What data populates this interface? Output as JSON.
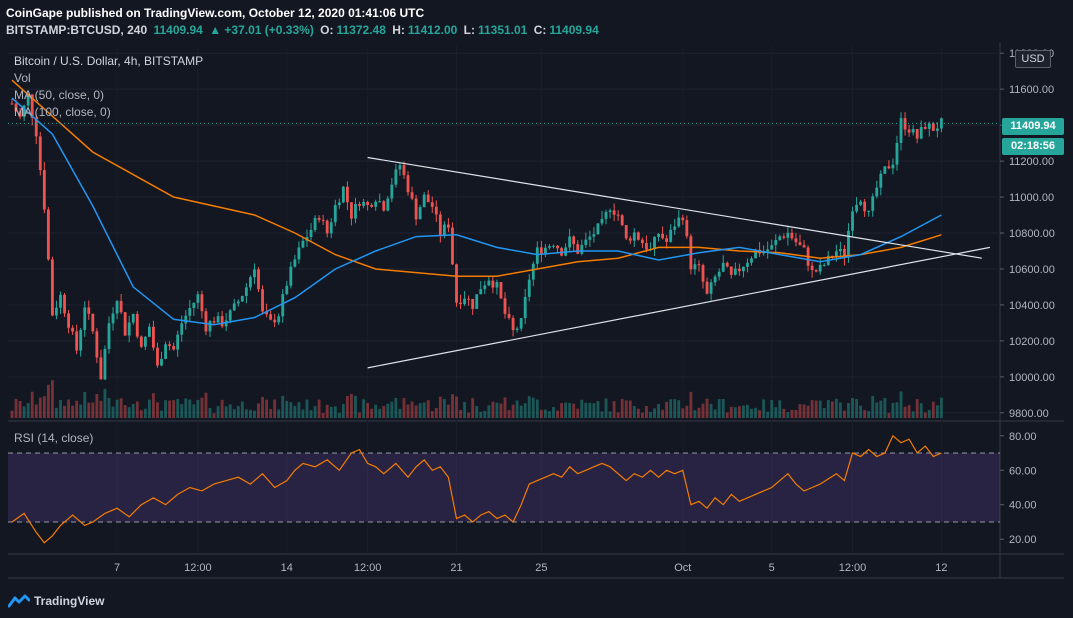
{
  "header": {
    "publisher": "CoinGape published on TradingView.com, October 12, 2020 01:41:06 UTC",
    "symbol": "BITSTAMP:BTCUSD, 240",
    "last": "11409.94",
    "change": "▲ +37.01 (+0.33%)",
    "o_label": "O:",
    "o": "11372.48",
    "h_label": "H:",
    "h": "11412.00",
    "l_label": "L:",
    "l": "11351.01",
    "c_label": "C:",
    "c": "11409.94"
  },
  "legend": {
    "title": "Bitcoin / U.S. Dollar, 4h, BITSTAMP",
    "vol": "Vol",
    "ma50": "MA (50, close, 0)",
    "ma100": "MA (100, close, 0)",
    "rsi": "RSI (14, close)"
  },
  "price_axis": {
    "currency": "USD",
    "last_price_label": "11409.94",
    "countdown_label": "02:18:56"
  },
  "footer": {
    "brand": "TradingView"
  },
  "colors": {
    "background": "#131722",
    "up": "#26a69a",
    "down": "#ef5350",
    "ma50": "#2196f3",
    "ma100": "#f57c00",
    "rsi_line": "#f57c00",
    "rsi_band": "#7e57c2"
  },
  "chart_data": [
    {
      "type": "candlestick",
      "title": "Bitcoin / U.S. Dollar, 4h, BITSTAMP",
      "price_ticks": [
        9800,
        10000,
        10200,
        10400,
        10600,
        10800,
        11000,
        11200,
        11400,
        11600,
        11800
      ],
      "price_tick_labels": [
        "9800.00",
        "10000.00",
        "10200.00",
        "10400.00",
        "10600.00",
        "10800.00",
        "11000.00",
        "11200.00",
        "11400.00",
        "11600.00",
        "11800.00"
      ],
      "ylim": [
        9760,
        11840
      ],
      "x_tick_labels": [
        "7",
        "12:00",
        "14",
        "12:00",
        "21",
        "25",
        "Oct",
        "5",
        "12:00",
        "12"
      ],
      "x_tick_index": [
        26,
        46,
        68,
        88,
        110,
        131,
        166,
        188,
        208,
        230
      ],
      "candle_count": 232,
      "close_path": [
        [
          0,
          11520
        ],
        [
          2,
          11440
        ],
        [
          4,
          11560
        ],
        [
          6,
          11360
        ],
        [
          8,
          10950
        ],
        [
          10,
          10350
        ],
        [
          12,
          10450
        ],
        [
          14,
          10300
        ],
        [
          16,
          10150
        ],
        [
          18,
          10400
        ],
        [
          20,
          10250
        ],
        [
          22,
          10000
        ],
        [
          24,
          10300
        ],
        [
          26,
          10450
        ],
        [
          28,
          10250
        ],
        [
          30,
          10350
        ],
        [
          32,
          10150
        ],
        [
          34,
          10280
        ],
        [
          36,
          10050
        ],
        [
          38,
          10200
        ],
        [
          40,
          10150
        ],
        [
          42,
          10300
        ],
        [
          44,
          10380
        ],
        [
          46,
          10450
        ],
        [
          48,
          10280
        ],
        [
          50,
          10320
        ],
        [
          52,
          10300
        ],
        [
          54,
          10350
        ],
        [
          56,
          10420
        ],
        [
          58,
          10500
        ],
        [
          60,
          10620
        ],
        [
          62,
          10350
        ],
        [
          64,
          10300
        ],
        [
          66,
          10350
        ],
        [
          68,
          10520
        ],
        [
          70,
          10650
        ],
        [
          72,
          10750
        ],
        [
          74,
          10820
        ],
        [
          76,
          10900
        ],
        [
          78,
          10800
        ],
        [
          80,
          10950
        ],
        [
          82,
          11050
        ],
        [
          84,
          10900
        ],
        [
          86,
          10980
        ],
        [
          88,
          10950
        ],
        [
          90,
          11000
        ],
        [
          92,
          10950
        ],
        [
          94,
          11080
        ],
        [
          96,
          11180
        ],
        [
          98,
          11050
        ],
        [
          100,
          10900
        ],
        [
          102,
          11000
        ],
        [
          104,
          10950
        ],
        [
          106,
          10800
        ],
        [
          108,
          10850
        ],
        [
          110,
          10420
        ],
        [
          112,
          10450
        ],
        [
          114,
          10400
        ],
        [
          116,
          10500
        ],
        [
          118,
          10550
        ],
        [
          120,
          10500
        ],
        [
          122,
          10350
        ],
        [
          124,
          10250
        ],
        [
          126,
          10300
        ],
        [
          128,
          10550
        ],
        [
          130,
          10700
        ],
        [
          132,
          10720
        ],
        [
          134,
          10750
        ],
        [
          136,
          10700
        ],
        [
          138,
          10760
        ],
        [
          140,
          10700
        ],
        [
          142,
          10750
        ],
        [
          144,
          10800
        ],
        [
          146,
          10850
        ],
        [
          148,
          10950
        ],
        [
          150,
          10900
        ],
        [
          152,
          10760
        ],
        [
          154,
          10800
        ],
        [
          156,
          10750
        ],
        [
          158,
          10700
        ],
        [
          160,
          10800
        ],
        [
          162,
          10750
        ],
        [
          164,
          10850
        ],
        [
          166,
          10900
        ],
        [
          168,
          10620
        ],
        [
          170,
          10600
        ],
        [
          172,
          10450
        ],
        [
          174,
          10550
        ],
        [
          176,
          10620
        ],
        [
          178,
          10550
        ],
        [
          180,
          10600
        ],
        [
          182,
          10650
        ],
        [
          184,
          10700
        ],
        [
          186,
          10700
        ],
        [
          188,
          10720
        ],
        [
          190,
          10780
        ],
        [
          192,
          10800
        ],
        [
          194,
          10750
        ],
        [
          196,
          10700
        ],
        [
          198,
          10580
        ],
        [
          200,
          10600
        ],
        [
          202,
          10650
        ],
        [
          204,
          10700
        ],
        [
          206,
          10680
        ],
        [
          208,
          10950
        ],
        [
          210,
          11000
        ],
        [
          212,
          10900
        ],
        [
          214,
          11050
        ],
        [
          216,
          11150
        ],
        [
          218,
          11200
        ],
        [
          220,
          11420
        ],
        [
          222,
          11380
        ],
        [
          224,
          11330
        ],
        [
          226,
          11400
        ],
        [
          228,
          11380
        ],
        [
          230,
          11410
        ]
      ],
      "ma50": [
        [
          0,
          11550
        ],
        [
          10,
          11350
        ],
        [
          20,
          10950
        ],
        [
          30,
          10500
        ],
        [
          40,
          10320
        ],
        [
          50,
          10290
        ],
        [
          60,
          10330
        ],
        [
          70,
          10440
        ],
        [
          80,
          10600
        ],
        [
          90,
          10700
        ],
        [
          100,
          10780
        ],
        [
          110,
          10790
        ],
        [
          120,
          10720
        ],
        [
          130,
          10680
        ],
        [
          140,
          10700
        ],
        [
          150,
          10700
        ],
        [
          160,
          10650
        ],
        [
          170,
          10690
        ],
        [
          180,
          10720
        ],
        [
          190,
          10680
        ],
        [
          200,
          10640
        ],
        [
          210,
          10680
        ],
        [
          220,
          10780
        ],
        [
          230,
          10900
        ]
      ],
      "ma100": [
        [
          0,
          11650
        ],
        [
          20,
          11250
        ],
        [
          40,
          11000
        ],
        [
          60,
          10900
        ],
        [
          70,
          10800
        ],
        [
          80,
          10680
        ],
        [
          90,
          10600
        ],
        [
          100,
          10580
        ],
        [
          110,
          10560
        ],
        [
          120,
          10560
        ],
        [
          130,
          10600
        ],
        [
          140,
          10640
        ],
        [
          150,
          10660
        ],
        [
          160,
          10720
        ],
        [
          170,
          10720
        ],
        [
          180,
          10700
        ],
        [
          190,
          10690
        ],
        [
          200,
          10660
        ],
        [
          210,
          10680
        ],
        [
          220,
          10720
        ],
        [
          230,
          10790
        ]
      ],
      "trendlines": [
        {
          "from": [
            88,
            11220
          ],
          "to": [
            240,
            10660
          ]
        },
        {
          "from": [
            88,
            10050
          ],
          "to": [
            242,
            10720
          ]
        }
      ],
      "last_price": 11409.94
    },
    {
      "type": "line",
      "title": "RSI (14, close)",
      "ticks": [
        20,
        40,
        60,
        80
      ],
      "tick_labels": [
        "20.00",
        "40.00",
        "60.00",
        "80.00"
      ],
      "ylim": [
        12,
        88
      ],
      "band": [
        30,
        70
      ],
      "rsi": [
        [
          0,
          30
        ],
        [
          3,
          35
        ],
        [
          6,
          24
        ],
        [
          8,
          18
        ],
        [
          10,
          22
        ],
        [
          12,
          28
        ],
        [
          15,
          34
        ],
        [
          18,
          28
        ],
        [
          20,
          30
        ],
        [
          23,
          35
        ],
        [
          26,
          38
        ],
        [
          29,
          33
        ],
        [
          32,
          40
        ],
        [
          35,
          44
        ],
        [
          38,
          40
        ],
        [
          41,
          46
        ],
        [
          44,
          50
        ],
        [
          47,
          48
        ],
        [
          50,
          52
        ],
        [
          53,
          54
        ],
        [
          56,
          56
        ],
        [
          59,
          52
        ],
        [
          62,
          58
        ],
        [
          65,
          50
        ],
        [
          68,
          54
        ],
        [
          70,
          60
        ],
        [
          72,
          64
        ],
        [
          75,
          62
        ],
        [
          78,
          66
        ],
        [
          81,
          60
        ],
        [
          84,
          70
        ],
        [
          86,
          72
        ],
        [
          88,
          64
        ],
        [
          90,
          62
        ],
        [
          92,
          58
        ],
        [
          95,
          64
        ],
        [
          98,
          56
        ],
        [
          100,
          62
        ],
        [
          102,
          66
        ],
        [
          104,
          60
        ],
        [
          106,
          62
        ],
        [
          108,
          56
        ],
        [
          110,
          32
        ],
        [
          112,
          34
        ],
        [
          114,
          30
        ],
        [
          116,
          34
        ],
        [
          118,
          36
        ],
        [
          120,
          32
        ],
        [
          122,
          34
        ],
        [
          124,
          30
        ],
        [
          126,
          40
        ],
        [
          128,
          52
        ],
        [
          130,
          54
        ],
        [
          132,
          56
        ],
        [
          134,
          58
        ],
        [
          136,
          56
        ],
        [
          138,
          62
        ],
        [
          140,
          58
        ],
        [
          142,
          60
        ],
        [
          144,
          62
        ],
        [
          146,
          64
        ],
        [
          148,
          62
        ],
        [
          150,
          58
        ],
        [
          152,
          54
        ],
        [
          154,
          58
        ],
        [
          156,
          56
        ],
        [
          158,
          60
        ],
        [
          160,
          56
        ],
        [
          162,
          60
        ],
        [
          164,
          58
        ],
        [
          166,
          60
        ],
        [
          168,
          40
        ],
        [
          170,
          42
        ],
        [
          172,
          38
        ],
        [
          174,
          44
        ],
        [
          176,
          40
        ],
        [
          178,
          46
        ],
        [
          180,
          42
        ],
        [
          182,
          44
        ],
        [
          184,
          46
        ],
        [
          186,
          48
        ],
        [
          188,
          50
        ],
        [
          190,
          54
        ],
        [
          192,
          58
        ],
        [
          194,
          52
        ],
        [
          196,
          48
        ],
        [
          198,
          50
        ],
        [
          200,
          52
        ],
        [
          202,
          55
        ],
        [
          204,
          58
        ],
        [
          206,
          54
        ],
        [
          208,
          70
        ],
        [
          210,
          68
        ],
        [
          212,
          72
        ],
        [
          214,
          68
        ],
        [
          216,
          70
        ],
        [
          218,
          80
        ],
        [
          220,
          76
        ],
        [
          222,
          78
        ],
        [
          224,
          70
        ],
        [
          226,
          74
        ],
        [
          228,
          68
        ],
        [
          230,
          70
        ]
      ]
    }
  ]
}
